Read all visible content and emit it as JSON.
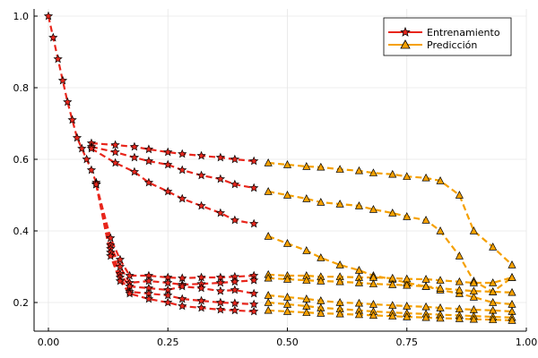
{
  "chart_data": {
    "type": "line",
    "title": "",
    "xlabel": "",
    "ylabel": "",
    "xlim": [
      -0.03,
      1.0
    ],
    "ylim": [
      0.12,
      1.02
    ],
    "xticks": [
      0.0,
      0.25,
      0.5,
      0.75,
      1.0
    ],
    "xtick_labels": [
      "0.00",
      "0.25",
      "0.50",
      "0.75",
      "1.00"
    ],
    "yticks": [
      0.2,
      0.4,
      0.6,
      0.8,
      1.0
    ],
    "ytick_labels": [
      "0.2",
      "0.4",
      "0.6",
      "0.8",
      "1.0"
    ],
    "grid": true,
    "legend_position": "top-right",
    "colors": {
      "train": "#e8261c",
      "pred": "#f5a000",
      "marker_edge": "#000000"
    },
    "legend": [
      {
        "label": "Entrenamiento",
        "color": "#e8261c",
        "marker": "star"
      },
      {
        "label": "Predicción",
        "color": "#f5a000",
        "marker": "triangle"
      }
    ],
    "initial_decay": {
      "x": [
        0.0,
        0.01,
        0.02,
        0.03,
        0.04,
        0.05,
        0.06,
        0.07,
        0.08,
        0.09,
        0.1
      ],
      "y": [
        1.0,
        0.94,
        0.88,
        0.82,
        0.76,
        0.71,
        0.66,
        0.63,
        0.6,
        0.57,
        0.535
      ]
    },
    "series": [
      {
        "group": 1,
        "train": {
          "x": [
            0.09,
            0.14,
            0.18,
            0.21,
            0.25,
            0.28,
            0.32,
            0.36,
            0.39,
            0.43
          ],
          "y": [
            0.645,
            0.64,
            0.635,
            0.628,
            0.62,
            0.615,
            0.61,
            0.605,
            0.6,
            0.595
          ]
        },
        "pred": {
          "x": [
            0.46,
            0.5,
            0.54,
            0.57,
            0.61,
            0.65,
            0.68,
            0.72,
            0.75,
            0.79,
            0.82,
            0.86,
            0.89,
            0.93,
            0.97
          ],
          "y": [
            0.59,
            0.585,
            0.58,
            0.578,
            0.572,
            0.568,
            0.562,
            0.558,
            0.552,
            0.548,
            0.54,
            0.5,
            0.4,
            0.355,
            0.305
          ]
        }
      },
      {
        "group": 2,
        "train": {
          "x": [
            0.09,
            0.14,
            0.18,
            0.21,
            0.25,
            0.28,
            0.32,
            0.36,
            0.39,
            0.43
          ],
          "y": [
            0.635,
            0.62,
            0.605,
            0.595,
            0.585,
            0.57,
            0.555,
            0.545,
            0.53,
            0.52
          ]
        },
        "pred": {
          "x": [
            0.46,
            0.5,
            0.54,
            0.57,
            0.61,
            0.65,
            0.68,
            0.72,
            0.75,
            0.79,
            0.82,
            0.86,
            0.89,
            0.93,
            0.97
          ],
          "y": [
            0.51,
            0.5,
            0.49,
            0.48,
            0.475,
            0.47,
            0.46,
            0.45,
            0.44,
            0.43,
            0.4,
            0.33,
            0.26,
            0.23,
            0.27
          ]
        }
      },
      {
        "group": 3,
        "train": {
          "x": [
            0.09,
            0.14,
            0.18,
            0.21,
            0.25,
            0.28,
            0.32,
            0.36,
            0.39,
            0.43
          ],
          "y": [
            0.63,
            0.59,
            0.565,
            0.535,
            0.51,
            0.49,
            0.47,
            0.45,
            0.43,
            0.42
          ]
        },
        "pred": {
          "x": [
            0.46,
            0.5,
            0.54,
            0.57,
            0.61,
            0.65,
            0.68,
            0.72,
            0.75,
            0.79,
            0.82,
            0.86,
            0.89,
            0.93,
            0.97
          ],
          "y": [
            0.385,
            0.365,
            0.345,
            0.325,
            0.305,
            0.29,
            0.275,
            0.265,
            0.255,
            0.245,
            0.235,
            0.225,
            0.215,
            0.2,
            0.195
          ]
        }
      },
      {
        "group": 4,
        "train": {
          "x": [
            0.1,
            0.13,
            0.15,
            0.17,
            0.21,
            0.25,
            0.28,
            0.32,
            0.36,
            0.39,
            0.43
          ],
          "y": [
            0.53,
            0.38,
            0.32,
            0.275,
            0.275,
            0.27,
            0.268,
            0.27,
            0.27,
            0.272,
            0.275
          ]
        },
        "pred": {
          "x": [
            0.46,
            0.5,
            0.54,
            0.57,
            0.61,
            0.65,
            0.68,
            0.72,
            0.75,
            0.79,
            0.82,
            0.86,
            0.89,
            0.93,
            0.97
          ],
          "y": [
            0.278,
            0.275,
            0.275,
            0.272,
            0.272,
            0.27,
            0.27,
            0.268,
            0.266,
            0.265,
            0.262,
            0.258,
            0.255,
            0.255,
            0.27
          ]
        }
      },
      {
        "group": 5,
        "train": {
          "x": [
            0.1,
            0.13,
            0.15,
            0.17,
            0.21,
            0.25,
            0.28,
            0.32,
            0.36,
            0.39,
            0.43
          ],
          "y": [
            0.53,
            0.36,
            0.3,
            0.255,
            0.26,
            0.255,
            0.25,
            0.252,
            0.255,
            0.258,
            0.262
          ]
        },
        "pred": {
          "x": [
            0.46,
            0.5,
            0.54,
            0.57,
            0.61,
            0.65,
            0.68,
            0.72,
            0.75,
            0.79,
            0.82,
            0.86,
            0.89,
            0.93,
            0.97
          ],
          "y": [
            0.268,
            0.265,
            0.262,
            0.26,
            0.258,
            0.255,
            0.252,
            0.25,
            0.248,
            0.245,
            0.24,
            0.235,
            0.232,
            0.23,
            0.228
          ]
        }
      },
      {
        "group": 6,
        "train": {
          "x": [
            0.1,
            0.13,
            0.15,
            0.17,
            0.21,
            0.25,
            0.28,
            0.32,
            0.36,
            0.39,
            0.43
          ],
          "y": [
            0.53,
            0.35,
            0.28,
            0.245,
            0.24,
            0.235,
            0.245,
            0.24,
            0.232,
            0.235,
            0.225
          ]
        },
        "pred": {
          "x": [
            0.46,
            0.5,
            0.54,
            0.57,
            0.61,
            0.65,
            0.68,
            0.72,
            0.75,
            0.79,
            0.82,
            0.86,
            0.89,
            0.93,
            0.97
          ],
          "y": [
            0.22,
            0.215,
            0.21,
            0.205,
            0.2,
            0.198,
            0.195,
            0.192,
            0.19,
            0.188,
            0.185,
            0.182,
            0.18,
            0.178,
            0.175
          ]
        }
      },
      {
        "group": 7,
        "train": {
          "x": [
            0.1,
            0.13,
            0.15,
            0.17,
            0.21,
            0.25,
            0.28,
            0.32,
            0.36,
            0.39,
            0.43
          ],
          "y": [
            0.53,
            0.34,
            0.27,
            0.23,
            0.225,
            0.22,
            0.21,
            0.205,
            0.2,
            0.198,
            0.195
          ]
        },
        "pred": {
          "x": [
            0.46,
            0.5,
            0.54,
            0.57,
            0.61,
            0.65,
            0.68,
            0.72,
            0.75,
            0.79,
            0.82,
            0.86,
            0.89,
            0.93,
            0.97
          ],
          "y": [
            0.2,
            0.195,
            0.19,
            0.185,
            0.182,
            0.178,
            0.175,
            0.172,
            0.17,
            0.168,
            0.166,
            0.164,
            0.162,
            0.16,
            0.158
          ]
        }
      },
      {
        "group": 8,
        "train": {
          "x": [
            0.1,
            0.13,
            0.15,
            0.17,
            0.21,
            0.25,
            0.28,
            0.32,
            0.36,
            0.39,
            0.43
          ],
          "y": [
            0.53,
            0.33,
            0.26,
            0.225,
            0.21,
            0.2,
            0.19,
            0.185,
            0.18,
            0.178,
            0.175
          ]
        },
        "pred": {
          "x": [
            0.46,
            0.5,
            0.54,
            0.57,
            0.61,
            0.65,
            0.68,
            0.72,
            0.75,
            0.79,
            0.82,
            0.86,
            0.89,
            0.93,
            0.97
          ],
          "y": [
            0.178,
            0.175,
            0.172,
            0.17,
            0.168,
            0.166,
            0.164,
            0.162,
            0.16,
            0.158,
            0.156,
            0.155,
            0.153,
            0.152,
            0.15
          ]
        }
      }
    ]
  }
}
